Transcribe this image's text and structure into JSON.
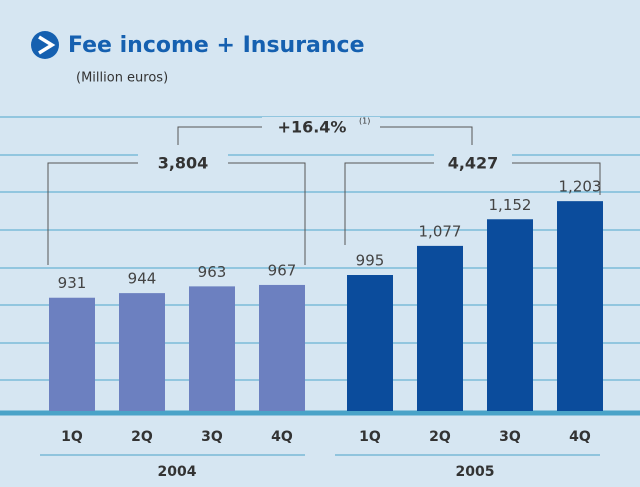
{
  "chart_data": {
    "type": "bar",
    "title": "Fee income + Insurance",
    "subtitle": "(Million euros)",
    "categories": [
      "1Q",
      "2Q",
      "3Q",
      "4Q"
    ],
    "series": [
      {
        "name": "2004",
        "color": "#6c80c0",
        "values": [
          931,
          944,
          963,
          967
        ]
      },
      {
        "name": "2005",
        "color": "#0b4c9c",
        "values": [
          995,
          1077,
          1152,
          1203
        ],
        "value_labels": [
          "995",
          "1,077",
          "1,152",
          "1,203"
        ]
      }
    ],
    "ylim": [
      612,
      1440
    ],
    "annotations": [
      {
        "text": "3,804"
      },
      {
        "text": "4,427"
      },
      {
        "text": "+16.4%",
        "note": "(1)"
      }
    ]
  }
}
